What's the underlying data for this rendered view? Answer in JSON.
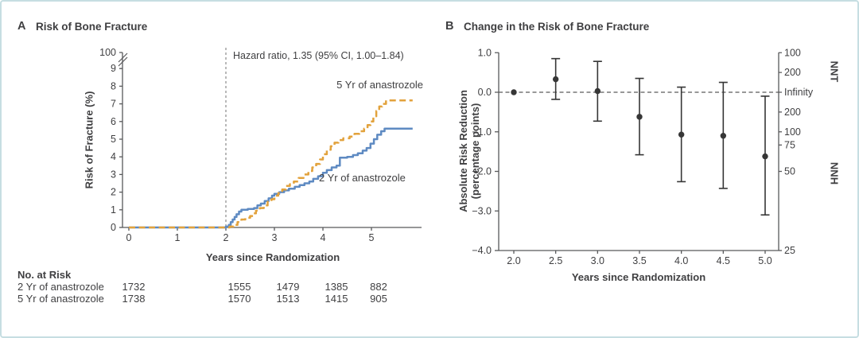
{
  "figure": {
    "border_color": "#c6dee2",
    "text_color": "#3f3f41",
    "axis_color": "#58595b"
  },
  "chart_data": [
    {
      "type": "line-step",
      "panel_letter": "A",
      "title": "Risk of Bone Fracture",
      "ylabel": "Risk of Fracture (%)",
      "xlabel": "Years since Randomization",
      "annotation": "Hazard ratio, 1.35 (95% CI, 1.00–1.84)",
      "annotation_line_x": 2,
      "axis_break": true,
      "ytop_label": "100",
      "yticks": [
        0,
        1,
        2,
        3,
        4,
        5,
        6,
        7,
        8,
        9
      ],
      "xticks": [
        0,
        1,
        2,
        3,
        4,
        5
      ],
      "xlim": [
        0,
        6.0
      ],
      "series": [
        {
          "name": "2 Yr of anastrozole",
          "color": "#5e8ac2",
          "style": "solid",
          "points": [
            [
              0,
              0
            ],
            [
              2.0,
              0.05
            ],
            [
              2.06,
              0.15
            ],
            [
              2.1,
              0.3
            ],
            [
              2.14,
              0.45
            ],
            [
              2.18,
              0.6
            ],
            [
              2.22,
              0.75
            ],
            [
              2.27,
              0.9
            ],
            [
              2.32,
              1.0
            ],
            [
              2.45,
              1.05
            ],
            [
              2.58,
              1.1
            ],
            [
              2.65,
              1.25
            ],
            [
              2.72,
              1.35
            ],
            [
              2.8,
              1.5
            ],
            [
              2.88,
              1.65
            ],
            [
              2.95,
              1.8
            ],
            [
              3.0,
              1.9
            ],
            [
              3.1,
              2.0
            ],
            [
              3.2,
              2.1
            ],
            [
              3.3,
              2.2
            ],
            [
              3.42,
              2.3
            ],
            [
              3.52,
              2.4
            ],
            [
              3.62,
              2.5
            ],
            [
              3.72,
              2.6
            ],
            [
              3.8,
              2.75
            ],
            [
              3.9,
              2.9
            ],
            [
              4.0,
              3.1
            ],
            [
              4.08,
              3.25
            ],
            [
              4.18,
              3.4
            ],
            [
              4.28,
              3.5
            ],
            [
              4.35,
              3.95
            ],
            [
              4.5,
              4.0
            ],
            [
              4.62,
              4.1
            ],
            [
              4.72,
              4.2
            ],
            [
              4.82,
              4.35
            ],
            [
              4.9,
              4.5
            ],
            [
              4.98,
              4.75
            ],
            [
              5.05,
              5.0
            ],
            [
              5.12,
              5.25
            ],
            [
              5.2,
              5.45
            ],
            [
              5.27,
              5.6
            ],
            [
              5.85,
              5.6
            ]
          ]
        },
        {
          "name": "5 Yr of anastrozole",
          "color": "#e2a23c",
          "style": "dashed",
          "points": [
            [
              0,
              0
            ],
            [
              2.08,
              0.05
            ],
            [
              2.16,
              0.15
            ],
            [
              2.24,
              0.3
            ],
            [
              2.32,
              0.45
            ],
            [
              2.4,
              0.55
            ],
            [
              2.5,
              0.65
            ],
            [
              2.56,
              0.8
            ],
            [
              2.62,
              0.95
            ],
            [
              2.7,
              1.1
            ],
            [
              2.78,
              1.25
            ],
            [
              2.86,
              1.45
            ],
            [
              2.94,
              1.6
            ],
            [
              3.0,
              1.8
            ],
            [
              3.08,
              1.95
            ],
            [
              3.16,
              2.15
            ],
            [
              3.24,
              2.35
            ],
            [
              3.32,
              2.45
            ],
            [
              3.4,
              2.6
            ],
            [
              3.5,
              2.8
            ],
            [
              3.6,
              3.0
            ],
            [
              3.7,
              3.2
            ],
            [
              3.78,
              3.4
            ],
            [
              3.86,
              3.6
            ],
            [
              3.94,
              3.85
            ],
            [
              4.0,
              4.15
            ],
            [
              4.08,
              4.4
            ],
            [
              4.16,
              4.6
            ],
            [
              4.24,
              4.8
            ],
            [
              4.32,
              4.95
            ],
            [
              4.42,
              5.05
            ],
            [
              4.55,
              5.15
            ],
            [
              4.65,
              5.3
            ],
            [
              4.75,
              5.45
            ],
            [
              4.85,
              5.6
            ],
            [
              4.92,
              5.8
            ],
            [
              4.98,
              6.0
            ],
            [
              5.04,
              6.3
            ],
            [
              5.1,
              6.6
            ],
            [
              5.16,
              6.85
            ],
            [
              5.22,
              7.0
            ],
            [
              5.3,
              7.2
            ],
            [
              5.85,
              7.2
            ]
          ]
        }
      ],
      "risk_table": {
        "title": "No. at Risk",
        "years": [
          0,
          2,
          3,
          4,
          5
        ],
        "rows": [
          {
            "label": "2 Yr of anastrozole",
            "values": [
              1732,
              1555,
              1479,
              1385,
              882
            ]
          },
          {
            "label": "5 Yr of anastrozole",
            "values": [
              1738,
              1570,
              1513,
              1415,
              905
            ]
          }
        ]
      }
    },
    {
      "type": "scatter-errorbar",
      "panel_letter": "B",
      "title": "Change in the Risk of Bone Fracture",
      "ylabel_line1": "Absolute Risk Reduction",
      "ylabel_line2": "(percentage points)",
      "xlabel": "Years since Randomization",
      "right_axis_top_label": "NNT",
      "right_axis_bottom_label": "NNH",
      "marker_color": "#363636",
      "ylim": [
        -4.0,
        1.0
      ],
      "yticks": [
        1.0,
        0.0,
        -1.0,
        -2.0,
        -3.0,
        -4.0
      ],
      "ytick_labels": [
        "1.0",
        "0.0",
        "−1.0",
        "−2.0",
        "−3.0",
        "−4.0"
      ],
      "x": [
        2.0,
        2.5,
        3.0,
        3.5,
        4.0,
        4.5,
        5.0
      ],
      "xtick_labels": [
        "2.0",
        "2.5",
        "3.0",
        "3.5",
        "4.0",
        "4.5",
        "5.0"
      ],
      "y": [
        0.0,
        0.33,
        0.03,
        -0.62,
        -1.07,
        -1.1,
        -1.62
      ],
      "ci_low": [
        0.0,
        -0.18,
        -0.73,
        -1.58,
        -2.26,
        -2.43,
        -3.1
      ],
      "ci_high": [
        0.0,
        0.85,
        0.78,
        0.35,
        0.13,
        0.25,
        -0.1
      ],
      "zero_line_dashed": true,
      "right_ticks": [
        {
          "label": "100",
          "value": 1.0
        },
        {
          "label": "200",
          "value": 0.5
        },
        {
          "label": "Infinity",
          "value": 0.0
        },
        {
          "label": "200",
          "value": -0.5
        },
        {
          "label": "100",
          "value": -1.0
        },
        {
          "label": "75",
          "value": -1.3333
        },
        {
          "label": "50",
          "value": -2.0
        },
        {
          "label": "25",
          "value": -4.0
        }
      ]
    }
  ]
}
